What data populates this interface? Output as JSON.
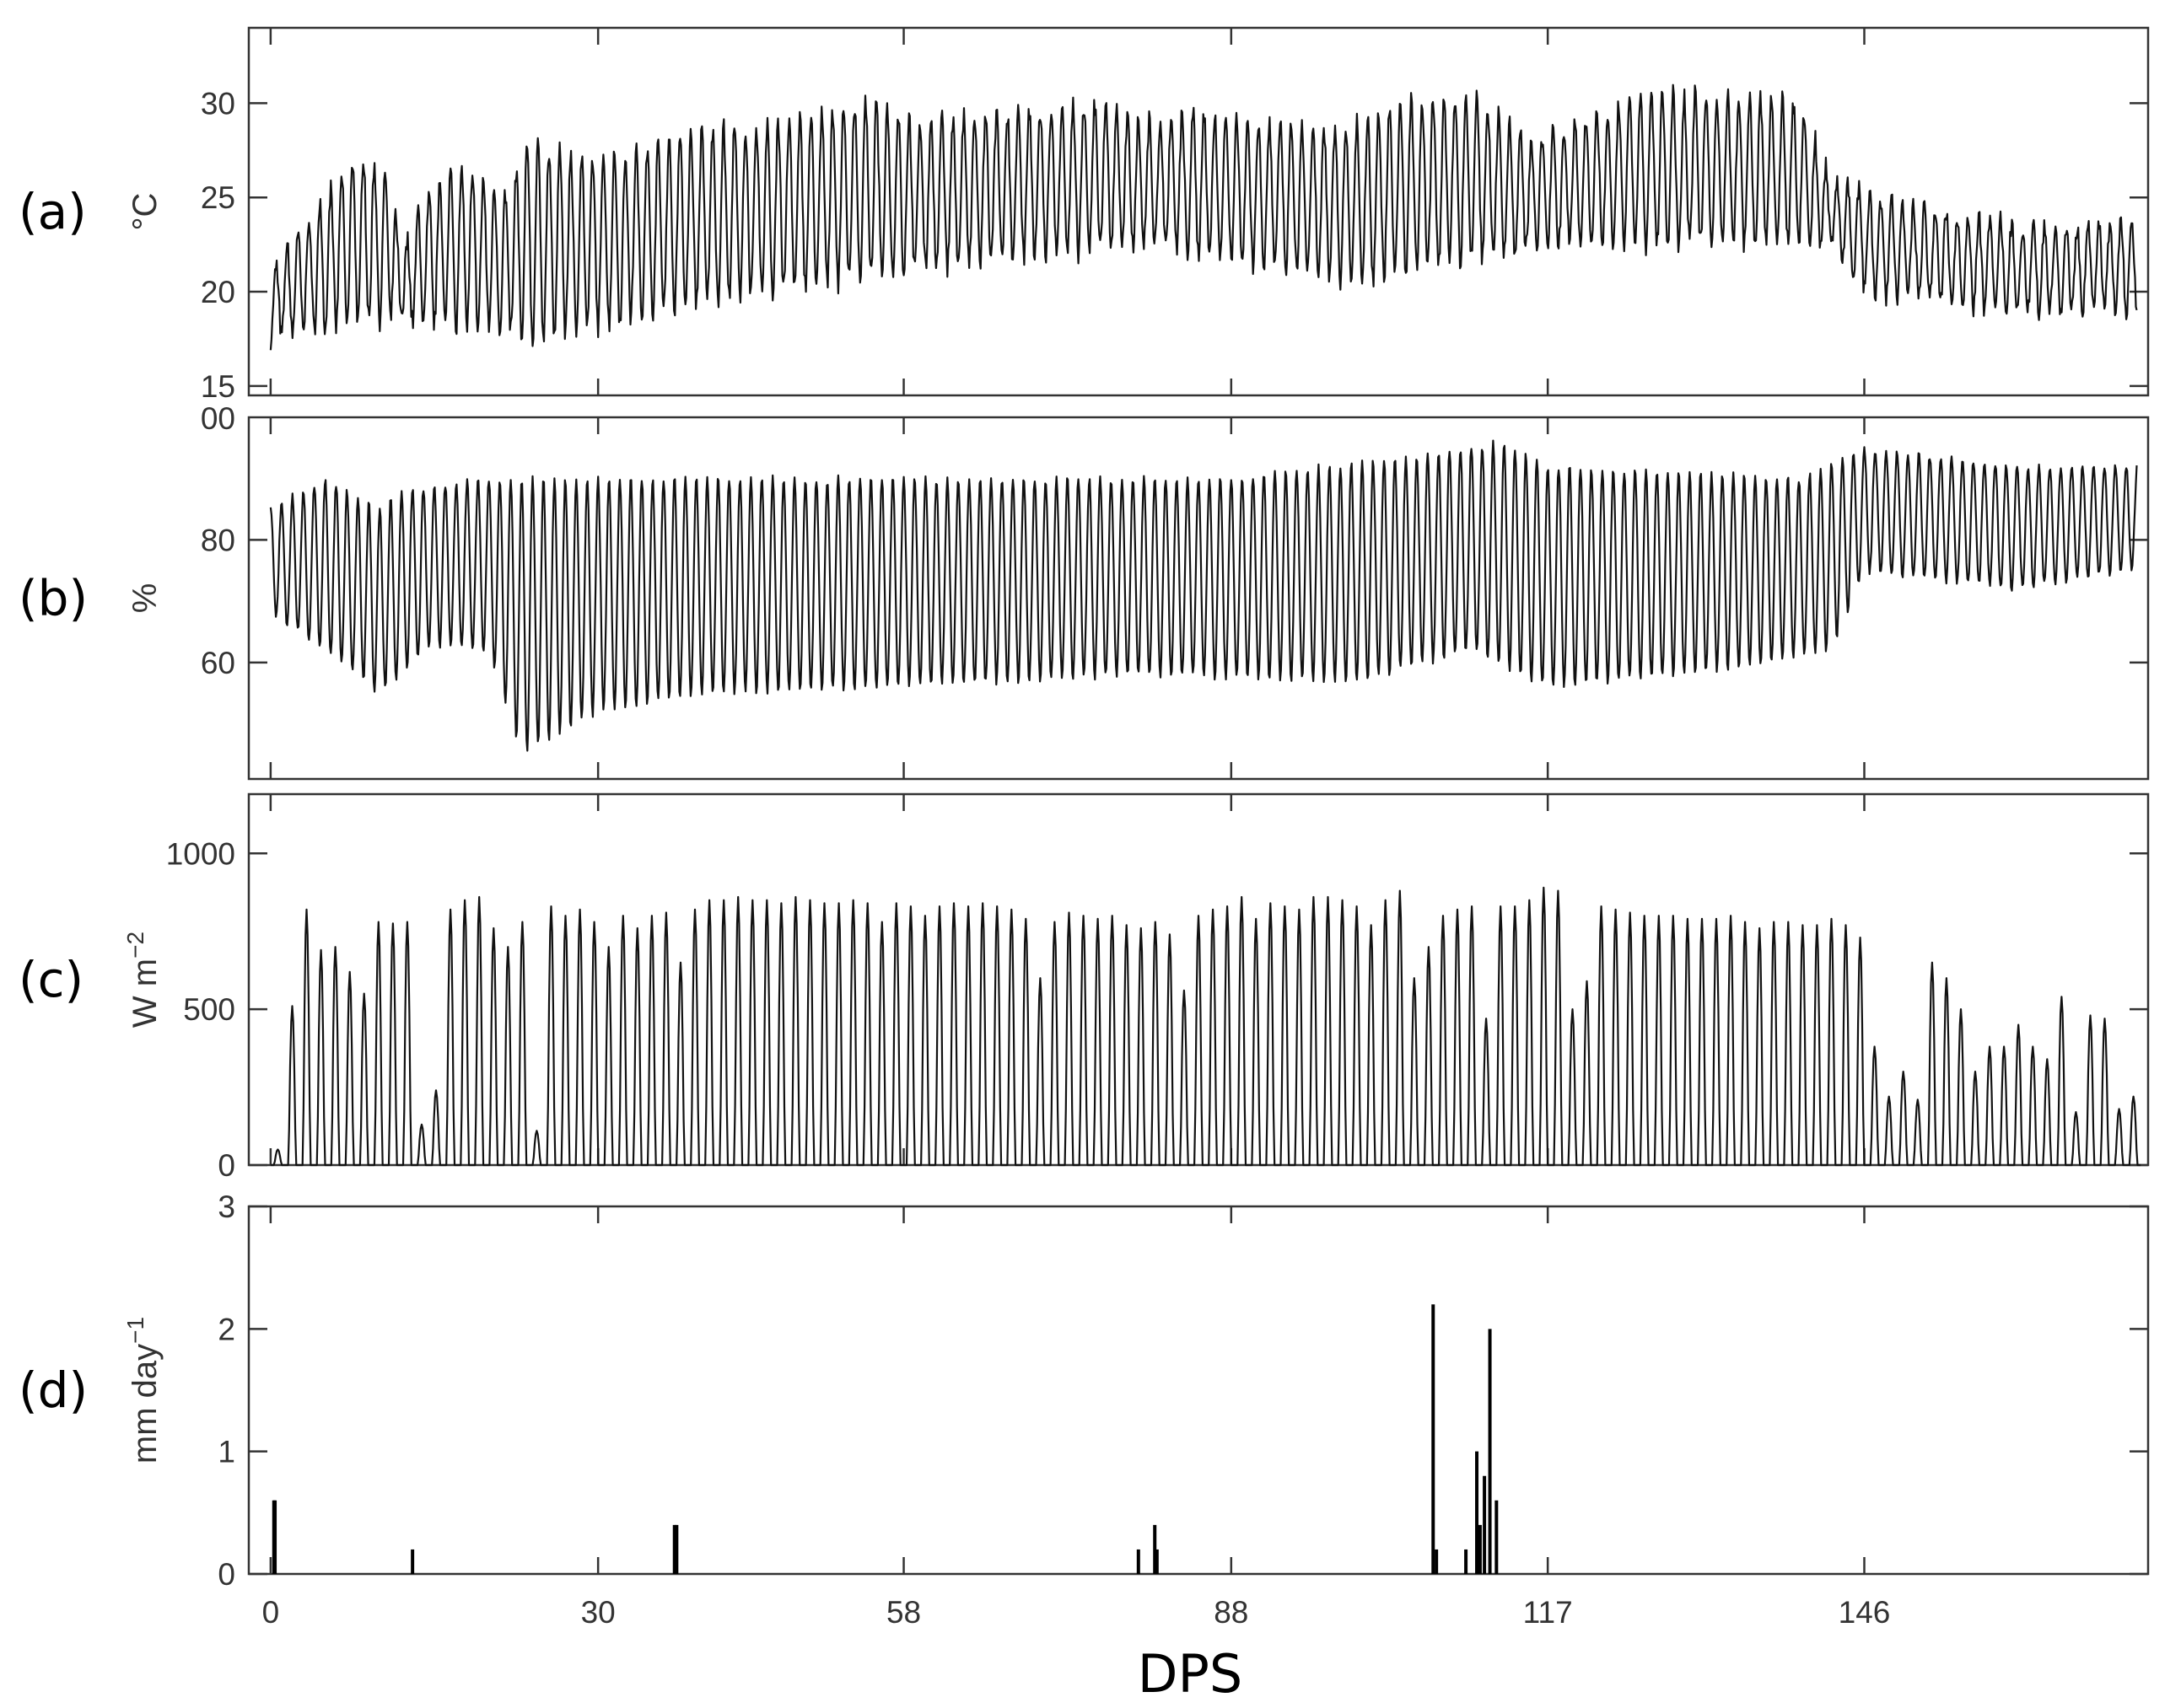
{
  "chart_data": [
    {
      "id": "a",
      "type": "line",
      "panel_label": "(a)",
      "ylabel": "°C",
      "ylim": [
        14.5,
        34
      ],
      "yticks": [
        15,
        20,
        25,
        30
      ],
      "xlim": [
        -2,
        172
      ],
      "xticks": [
        0,
        30,
        58,
        88,
        117,
        146
      ],
      "series": [
        {
          "diurnal_min": [
            [
              0,
              17.5
            ],
            [
              10,
              18.5
            ],
            [
              22,
              18
            ],
            [
              23,
              17.2
            ],
            [
              40,
              19.5
            ],
            [
              58,
              21
            ],
            [
              80,
              22.5
            ],
            [
              100,
              20.5
            ],
            [
              104,
              21
            ],
            [
              117,
              22.5
            ],
            [
              143,
              22.5
            ],
            [
              146,
              20
            ],
            [
              160,
              19
            ],
            [
              170,
              19
            ]
          ],
          "diurnal_max": [
            [
              0,
              21
            ],
            [
              2,
              23
            ],
            [
              5,
              25
            ],
            [
              8,
              27.5
            ],
            [
              11,
              26
            ],
            [
              12,
              22
            ],
            [
              14,
              25
            ],
            [
              17,
              27
            ],
            [
              22,
              25
            ],
            [
              23,
              28
            ],
            [
              30,
              27
            ],
            [
              40,
              28.5
            ],
            [
              47,
              29
            ],
            [
              55,
              30
            ],
            [
              60,
              29
            ],
            [
              76,
              30
            ],
            [
              80,
              29
            ],
            [
              85,
              29.5
            ],
            [
              95,
              28.5
            ],
            [
              100,
              29
            ],
            [
              103,
              30
            ],
            [
              110,
              30.5
            ],
            [
              115,
              28
            ],
            [
              120,
              29
            ],
            [
              125,
              30.5
            ],
            [
              128,
              30.5
            ],
            [
              140,
              30
            ],
            [
              143,
              26
            ],
            [
              147,
              25
            ],
            [
              160,
              23.5
            ],
            [
              170,
              23.5
            ]
          ]
        }
      ]
    },
    {
      "id": "b",
      "type": "line",
      "panel_label": "(b)",
      "ylabel": "%",
      "ylim": [
        41,
        100
      ],
      "yticks": [
        60,
        80
      ],
      "yticklabels": [
        "60",
        "80"
      ],
      "top_tick_label": "00",
      "xlim": [
        -2,
        172
      ],
      "xticks": [
        0,
        30,
        58,
        88,
        117,
        146
      ],
      "series": [
        {
          "diurnal_min": [
            [
              0,
              68
            ],
            [
              5,
              62
            ],
            [
              10,
              55
            ],
            [
              15,
              63
            ],
            [
              20,
              62
            ],
            [
              23,
              45
            ],
            [
              30,
              52
            ],
            [
              40,
              55
            ],
            [
              58,
              56
            ],
            [
              80,
              58
            ],
            [
              100,
              57
            ],
            [
              110,
              62
            ],
            [
              117,
              56
            ],
            [
              130,
              58
            ],
            [
              143,
              62
            ],
            [
              146,
              75
            ],
            [
              160,
              72
            ],
            [
              170,
              75
            ]
          ],
          "diurnal_max": [
            [
              0,
              85
            ],
            [
              5,
              90
            ],
            [
              10,
              85
            ],
            [
              12,
              88
            ],
            [
              20,
              90
            ],
            [
              40,
              90
            ],
            [
              58,
              90
            ],
            [
              88,
              90
            ],
            [
              106,
              94
            ],
            [
              113,
              96
            ],
            [
              117,
              92
            ],
            [
              140,
              90
            ],
            [
              146,
              95
            ],
            [
              160,
              92
            ],
            [
              170,
              92
            ]
          ]
        }
      ]
    },
    {
      "id": "c",
      "type": "line",
      "panel_label": "(c)",
      "ylabel": "W m−2",
      "ylabel_parts": [
        "W m",
        "−2"
      ],
      "ylim": [
        0,
        1190
      ],
      "yticks": [
        0,
        500,
        1000
      ],
      "xlim": [
        -2,
        172
      ],
      "xticks": [
        0,
        30,
        58,
        88,
        117,
        146
      ],
      "series": [
        {
          "daily_peak": [
            [
              0,
              50
            ],
            [
              1,
              510
            ],
            [
              2,
              820
            ],
            [
              3,
              690
            ],
            [
              4,
              700
            ],
            [
              5,
              620
            ],
            [
              6,
              550
            ],
            [
              7,
              780
            ],
            [
              8,
              775
            ],
            [
              9,
              780
            ],
            [
              10,
              130
            ],
            [
              11,
              240
            ],
            [
              12,
              820
            ],
            [
              13,
              850
            ],
            [
              14,
              860
            ],
            [
              15,
              760
            ],
            [
              16,
              700
            ],
            [
              17,
              780
            ],
            [
              18,
              110
            ],
            [
              19,
              830
            ],
            [
              20,
              800
            ],
            [
              21,
              820
            ],
            [
              22,
              780
            ],
            [
              23,
              700
            ],
            [
              24,
              800
            ],
            [
              25,
              760
            ],
            [
              26,
              800
            ],
            [
              27,
              810
            ],
            [
              28,
              650
            ],
            [
              29,
              820
            ],
            [
              30,
              850
            ],
            [
              31,
              850
            ],
            [
              32,
              860
            ],
            [
              33,
              850
            ],
            [
              34,
              850
            ],
            [
              35,
              840
            ],
            [
              36,
              860
            ],
            [
              37,
              850
            ],
            [
              38,
              840
            ],
            [
              39,
              840
            ],
            [
              40,
              850
            ],
            [
              41,
              840
            ],
            [
              42,
              780
            ],
            [
              43,
              840
            ],
            [
              44,
              830
            ],
            [
              45,
              800
            ],
            [
              46,
              830
            ],
            [
              47,
              840
            ],
            [
              48,
              830
            ],
            [
              49,
              840
            ],
            [
              50,
              830
            ],
            [
              51,
              820
            ],
            [
              52,
              790
            ],
            [
              53,
              600
            ],
            [
              54,
              780
            ],
            [
              55,
              810
            ],
            [
              56,
              800
            ],
            [
              57,
              790
            ],
            [
              58,
              800
            ],
            [
              59,
              770
            ],
            [
              60,
              760
            ],
            [
              61,
              780
            ],
            [
              62,
              740
            ],
            [
              63,
              560
            ],
            [
              64,
              800
            ],
            [
              65,
              820
            ],
            [
              66,
              830
            ],
            [
              67,
              860
            ],
            [
              68,
              790
            ],
            [
              69,
              840
            ],
            [
              70,
              830
            ],
            [
              71,
              820
            ],
            [
              72,
              860
            ],
            [
              73,
              860
            ],
            [
              74,
              850
            ],
            [
              75,
              830
            ],
            [
              76,
              770
            ],
            [
              77,
              850
            ],
            [
              78,
              880
            ],
            [
              79,
              600
            ],
            [
              80,
              700
            ],
            [
              81,
              800
            ],
            [
              82,
              820
            ],
            [
              83,
              830
            ],
            [
              84,
              470
            ],
            [
              85,
              830
            ],
            [
              86,
              830
            ],
            [
              87,
              850
            ],
            [
              88,
              890
            ],
            [
              89,
              880
            ],
            [
              90,
              500
            ],
            [
              91,
              590
            ],
            [
              92,
              830
            ],
            [
              93,
              820
            ],
            [
              94,
              810
            ],
            [
              95,
              800
            ],
            [
              96,
              800
            ],
            [
              97,
              800
            ],
            [
              98,
              790
            ],
            [
              99,
              790
            ],
            [
              100,
              790
            ],
            [
              101,
              800
            ],
            [
              102,
              780
            ],
            [
              103,
              760
            ],
            [
              104,
              780
            ],
            [
              105,
              780
            ],
            [
              106,
              770
            ],
            [
              107,
              770
            ],
            [
              108,
              790
            ],
            [
              109,
              770
            ],
            [
              110,
              730
            ],
            [
              111,
              380
            ],
            [
              112,
              220
            ],
            [
              113,
              300
            ],
            [
              114,
              210
            ],
            [
              115,
              650
            ],
            [
              116,
              600
            ],
            [
              117,
              500
            ],
            [
              118,
              300
            ],
            [
              119,
              380
            ],
            [
              120,
              380
            ],
            [
              121,
              450
            ],
            [
              122,
              380
            ],
            [
              123,
              340
            ],
            [
              124,
              540
            ],
            [
              125,
              170
            ],
            [
              126,
              480
            ],
            [
              127,
              470
            ],
            [
              128,
              180
            ],
            [
              129,
              220
            ]
          ],
          "x_scale_note": "daily peaks mapped linearly to DPS 0-170"
        }
      ]
    },
    {
      "id": "d",
      "type": "bar",
      "panel_label": "(d)",
      "ylabel": "mm day−1",
      "ylabel_parts": [
        "mm day",
        "−1"
      ],
      "ylim": [
        0,
        3
      ],
      "yticks": [
        0,
        1,
        2,
        3
      ],
      "xlim": [
        -2,
        172
      ],
      "xticks": [
        0,
        30,
        58,
        88,
        117,
        146
      ],
      "xlabel": "DPS",
      "x": [
        0.3,
        0.4,
        13,
        37,
        37.2,
        79.5,
        81,
        81.2,
        106.5,
        106.8,
        109.5,
        110.5,
        110.8,
        111.2,
        111.7,
        112.3
      ],
      "values": [
        0.6,
        0.6,
        0.2,
        0.4,
        0.4,
        0.2,
        0.4,
        0.2,
        2.2,
        0.2,
        0.2,
        1.0,
        0.4,
        0.8,
        2.0,
        0.6
      ]
    }
  ]
}
